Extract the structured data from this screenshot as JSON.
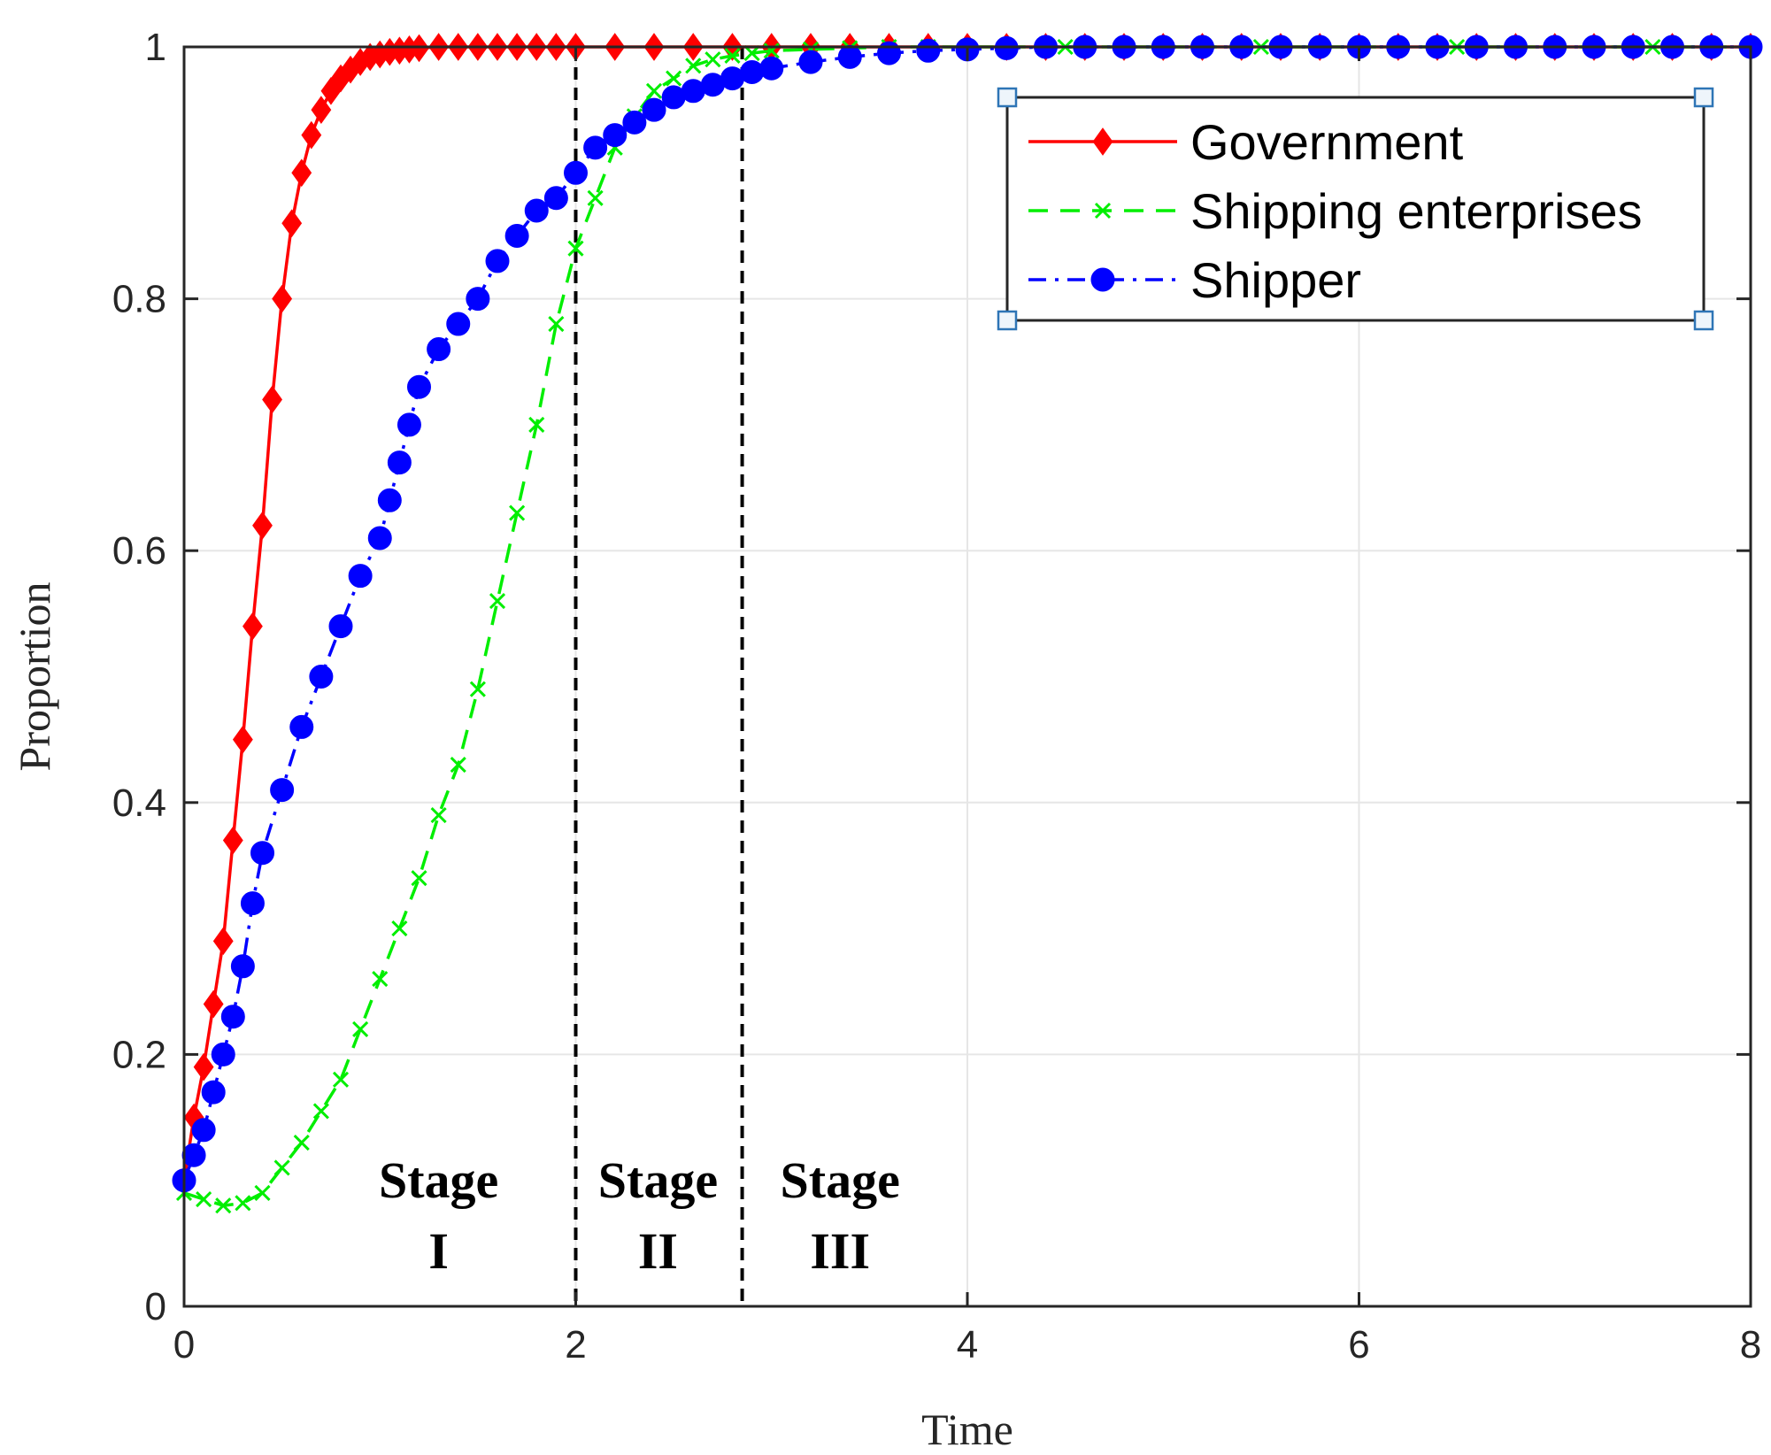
{
  "chart_data": {
    "type": "line",
    "title": "",
    "xlabel": "Time",
    "ylabel": "Proportion",
    "xlim": [
      0,
      8
    ],
    "ylim": [
      0,
      1
    ],
    "xticks": [
      0,
      2,
      4,
      6,
      8
    ],
    "xtick_labels": [
      "0",
      "2",
      "4",
      "6",
      "8"
    ],
    "yticks": [
      0,
      0.2,
      0.4,
      0.6,
      0.8,
      1
    ],
    "ytick_labels": [
      "0",
      "0.2",
      "0.4",
      "0.6",
      "0.8",
      "1"
    ],
    "grid": true,
    "legend_position": "top-right",
    "series": [
      {
        "name": "Government",
        "color": "#ff0000",
        "line_style": "solid",
        "marker": "diamond",
        "x": [
          0,
          0.05,
          0.1,
          0.15,
          0.2,
          0.25,
          0.3,
          0.35,
          0.4,
          0.45,
          0.5,
          0.55,
          0.6,
          0.65,
          0.7,
          0.75,
          0.8,
          0.85,
          0.9,
          0.95,
          1.0,
          1.05,
          1.1,
          1.15,
          1.2,
          1.3,
          1.4,
          1.5,
          1.6,
          1.7,
          1.8,
          1.9,
          2.0,
          2.2,
          2.4,
          2.6,
          2.8,
          3.0,
          3.2,
          3.4,
          3.6,
          3.8,
          4.0,
          4.2,
          4.4,
          4.6,
          4.8,
          5.0,
          5.2,
          5.4,
          5.6,
          5.8,
          6.0,
          6.2,
          6.4,
          6.6,
          6.8,
          7.0,
          7.2,
          7.4,
          7.6,
          7.8,
          8.0
        ],
        "y": [
          0.1,
          0.15,
          0.19,
          0.24,
          0.29,
          0.37,
          0.45,
          0.54,
          0.62,
          0.72,
          0.8,
          0.86,
          0.9,
          0.93,
          0.95,
          0.965,
          0.975,
          0.982,
          0.988,
          0.992,
          0.994,
          0.996,
          0.997,
          0.998,
          0.999,
          1,
          1,
          1,
          1,
          1,
          1,
          1,
          1,
          1,
          1,
          1,
          1,
          1,
          1,
          1,
          1,
          1,
          1,
          1,
          1,
          1,
          1,
          1,
          1,
          1,
          1,
          1,
          1,
          1,
          1,
          1,
          1,
          1,
          1,
          1,
          1,
          1,
          1
        ]
      },
      {
        "name": "Shipping enterprises",
        "color": "#00ee00",
        "line_style": "dashed",
        "marker": "x",
        "x": [
          0,
          0.1,
          0.2,
          0.3,
          0.4,
          0.5,
          0.6,
          0.7,
          0.8,
          0.9,
          1.0,
          1.1,
          1.2,
          1.3,
          1.4,
          1.5,
          1.6,
          1.7,
          1.8,
          1.9,
          2.0,
          2.1,
          2.2,
          2.3,
          2.4,
          2.5,
          2.6,
          2.7,
          2.8,
          2.9,
          3.0,
          3.2,
          3.4,
          3.6,
          3.8,
          4.0,
          4.5,
          5.0,
          5.5,
          6.0,
          6.5,
          7.0,
          7.5,
          8.0
        ],
        "y": [
          0.09,
          0.085,
          0.08,
          0.082,
          0.09,
          0.11,
          0.13,
          0.155,
          0.18,
          0.22,
          0.26,
          0.3,
          0.34,
          0.39,
          0.43,
          0.49,
          0.56,
          0.63,
          0.7,
          0.78,
          0.84,
          0.88,
          0.92,
          0.945,
          0.965,
          0.975,
          0.985,
          0.99,
          0.993,
          0.995,
          0.997,
          0.998,
          0.999,
          1,
          1,
          1,
          1,
          1,
          1,
          1,
          1,
          1,
          1,
          1
        ]
      },
      {
        "name": "Shipper",
        "color": "#0000ff",
        "line_style": "dashdot",
        "marker": "circle",
        "x": [
          0,
          0.05,
          0.1,
          0.15,
          0.2,
          0.25,
          0.3,
          0.35,
          0.4,
          0.5,
          0.6,
          0.7,
          0.8,
          0.9,
          1.0,
          1.05,
          1.1,
          1.15,
          1.2,
          1.3,
          1.4,
          1.5,
          1.6,
          1.7,
          1.8,
          1.9,
          2.0,
          2.1,
          2.2,
          2.3,
          2.4,
          2.5,
          2.6,
          2.7,
          2.8,
          2.9,
          3.0,
          3.2,
          3.4,
          3.6,
          3.8,
          4.0,
          4.2,
          4.4,
          4.6,
          4.8,
          5.0,
          5.2,
          5.4,
          5.6,
          5.8,
          6.0,
          6.2,
          6.4,
          6.6,
          6.8,
          7.0,
          7.2,
          7.4,
          7.6,
          7.8,
          8.0
        ],
        "y": [
          0.1,
          0.12,
          0.14,
          0.17,
          0.2,
          0.23,
          0.27,
          0.32,
          0.36,
          0.41,
          0.46,
          0.5,
          0.54,
          0.58,
          0.61,
          0.64,
          0.67,
          0.7,
          0.73,
          0.76,
          0.78,
          0.8,
          0.83,
          0.85,
          0.87,
          0.88,
          0.9,
          0.92,
          0.93,
          0.94,
          0.95,
          0.96,
          0.965,
          0.97,
          0.975,
          0.98,
          0.983,
          0.988,
          0.992,
          0.995,
          0.997,
          0.998,
          0.999,
          1,
          1,
          1,
          1,
          1,
          1,
          1,
          1,
          1,
          1,
          1,
          1,
          1,
          1,
          1,
          1,
          1,
          1,
          1
        ]
      }
    ],
    "vertical_lines": [
      2,
      2.85
    ],
    "stage_labels": [
      {
        "line1": "Stage",
        "line2": "I",
        "x": 1.3
      },
      {
        "line1": "Stage",
        "line2": "II",
        "x": 2.42
      },
      {
        "line1": "Stage",
        "line2": "III",
        "x": 3.35
      }
    ]
  }
}
